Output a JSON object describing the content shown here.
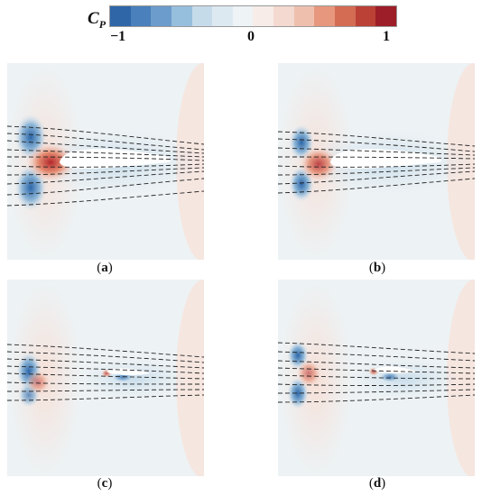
{
  "colorbar": {
    "symbol": "C",
    "subscript": "P",
    "tick_min": "−1",
    "tick_mid": "0",
    "tick_max": "1",
    "colors": [
      "#2f66a8",
      "#4a80bb",
      "#6b9ccb",
      "#96bedd",
      "#c6dbea",
      "#dde9f1",
      "#eef3f5",
      "#f7ece8",
      "#f4d9d0",
      "#efbfae",
      "#e6977d",
      "#d46c54",
      "#bb4137",
      "#9d1e28"
    ]
  },
  "panels": [
    {
      "label": "a",
      "caption_open": "(",
      "caption_close": ")"
    },
    {
      "label": "b",
      "caption_open": "(",
      "caption_close": ")"
    },
    {
      "label": "c",
      "caption_open": "(",
      "caption_close": ")"
    },
    {
      "label": "d",
      "caption_open": "(",
      "caption_close": ")"
    }
  ]
}
